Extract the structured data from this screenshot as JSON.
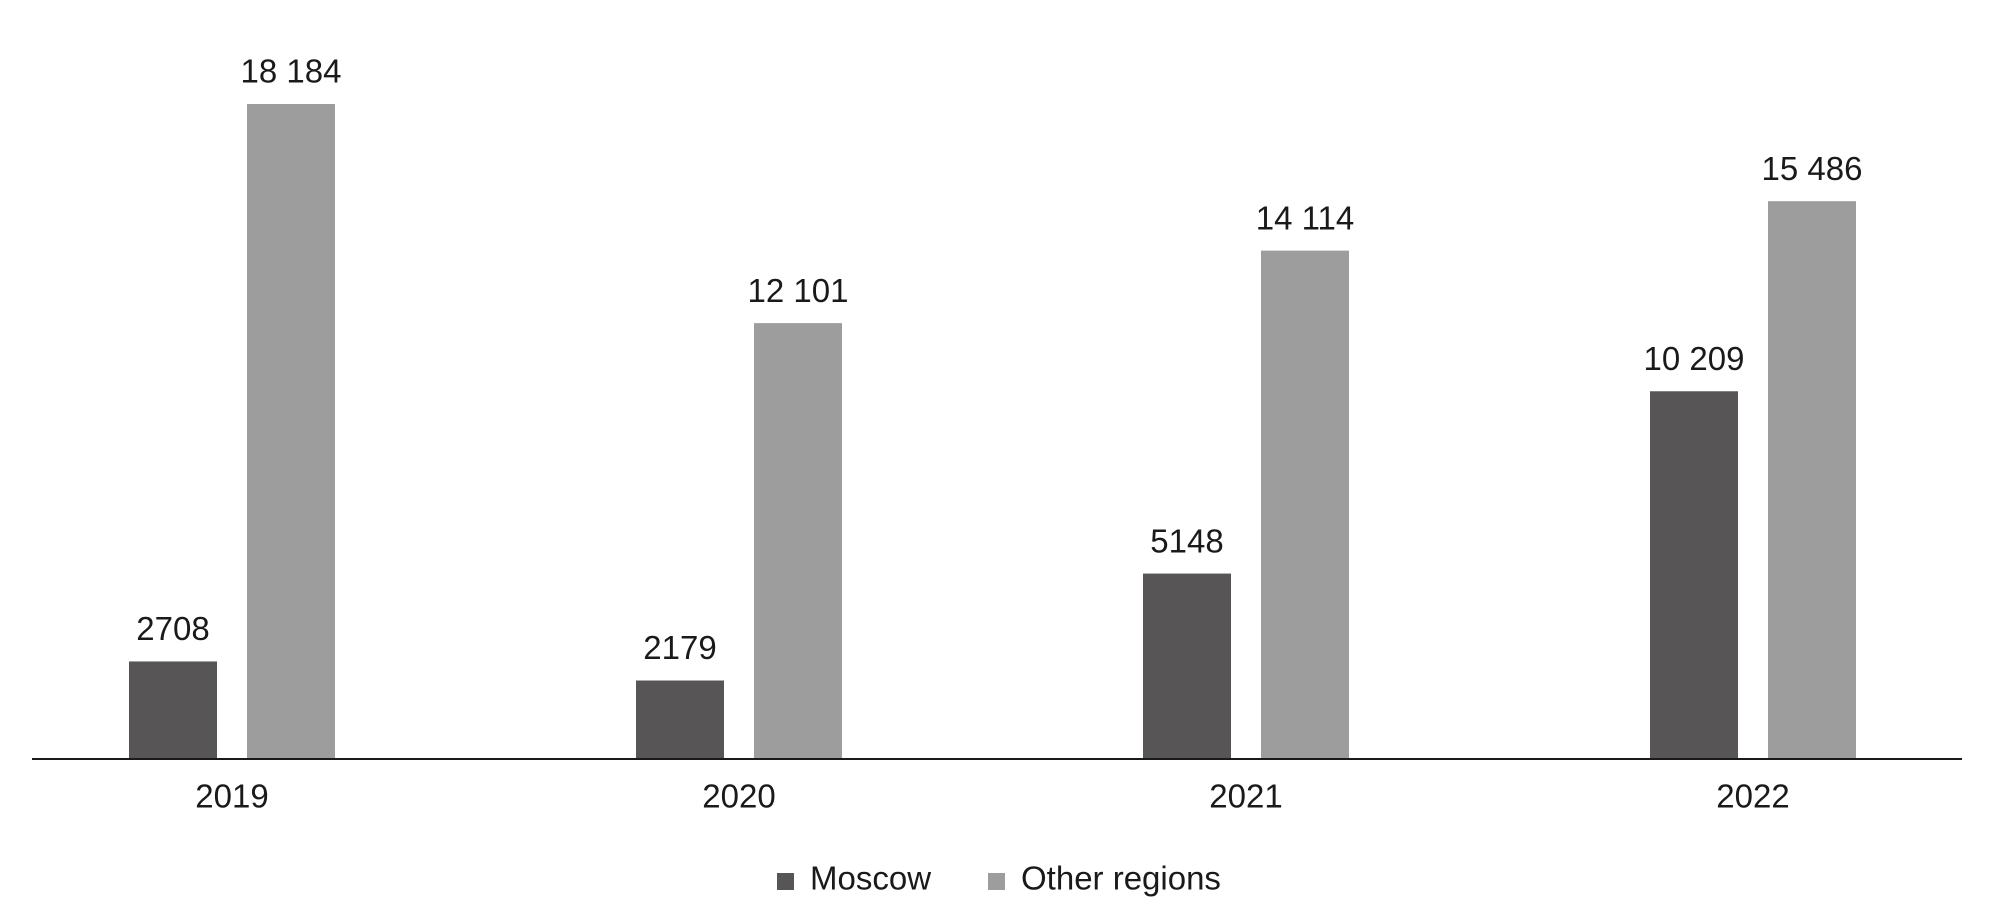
{
  "chart_data": {
    "type": "bar",
    "categories": [
      "2019",
      "2020",
      "2021",
      "2022"
    ],
    "series": [
      {
        "name": "Moscow",
        "color": "#575556",
        "values": [
          2708,
          2179,
          5148,
          10209
        ],
        "value_labels": [
          "2708",
          "2179",
          "5148",
          "10 209"
        ]
      },
      {
        "name": "Other regions",
        "color": "#9d9d9d",
        "values": [
          18184,
          12101,
          14114,
          15486
        ],
        "value_labels": [
          "18 184",
          "12 101",
          "14 114",
          "15 486"
        ]
      }
    ]
  }
}
